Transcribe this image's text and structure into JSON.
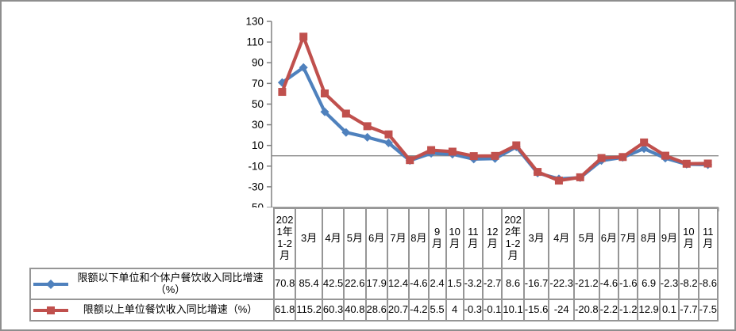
{
  "chart_data": {
    "type": "line",
    "title": "",
    "xlabel": "",
    "ylabel": "",
    "ylim": [
      -50,
      130
    ],
    "y_ticks": [
      130,
      110,
      90,
      70,
      50,
      30,
      10,
      -10,
      -30,
      -50
    ],
    "grid": "zero-line-only",
    "legend_position": "table-left",
    "axis_color": "#808080",
    "table_border_color": "#969696",
    "categories": [
      "2021年1-2月",
      "3月",
      "4月",
      "5月",
      "6月",
      "7月",
      "8月",
      "9月",
      "10月",
      "11月",
      "12月",
      "2022年1-2月",
      "3月",
      "4月",
      "5月",
      "6月",
      "7月",
      "8月",
      "9月",
      "10月",
      "11月"
    ],
    "series": [
      {
        "name": "限额以下单位和个体户餐饮收入同比增速（%）",
        "color": "#4F81BD",
        "marker": "diamond",
        "values": [
          70.8,
          85.4,
          42.5,
          22.6,
          17.9,
          12.4,
          -4.6,
          2.4,
          1.5,
          -3.2,
          -2.7,
          8.6,
          -16.7,
          -22.3,
          -21.2,
          -4.6,
          -1.6,
          6.9,
          -2.3,
          -8.2,
          -8.6
        ]
      },
      {
        "name": "限额以上单位餐饮收入同比增速（%）",
        "color": "#C0504D",
        "marker": "square",
        "values": [
          61.8,
          115.2,
          60.3,
          40.8,
          28.6,
          20.7,
          -4.2,
          5.5,
          4,
          -0.3,
          -0.1,
          10.1,
          -15.6,
          -24,
          -20.8,
          -2.2,
          -1.2,
          12.9,
          0.1,
          -7.7,
          -7.5
        ]
      }
    ]
  }
}
